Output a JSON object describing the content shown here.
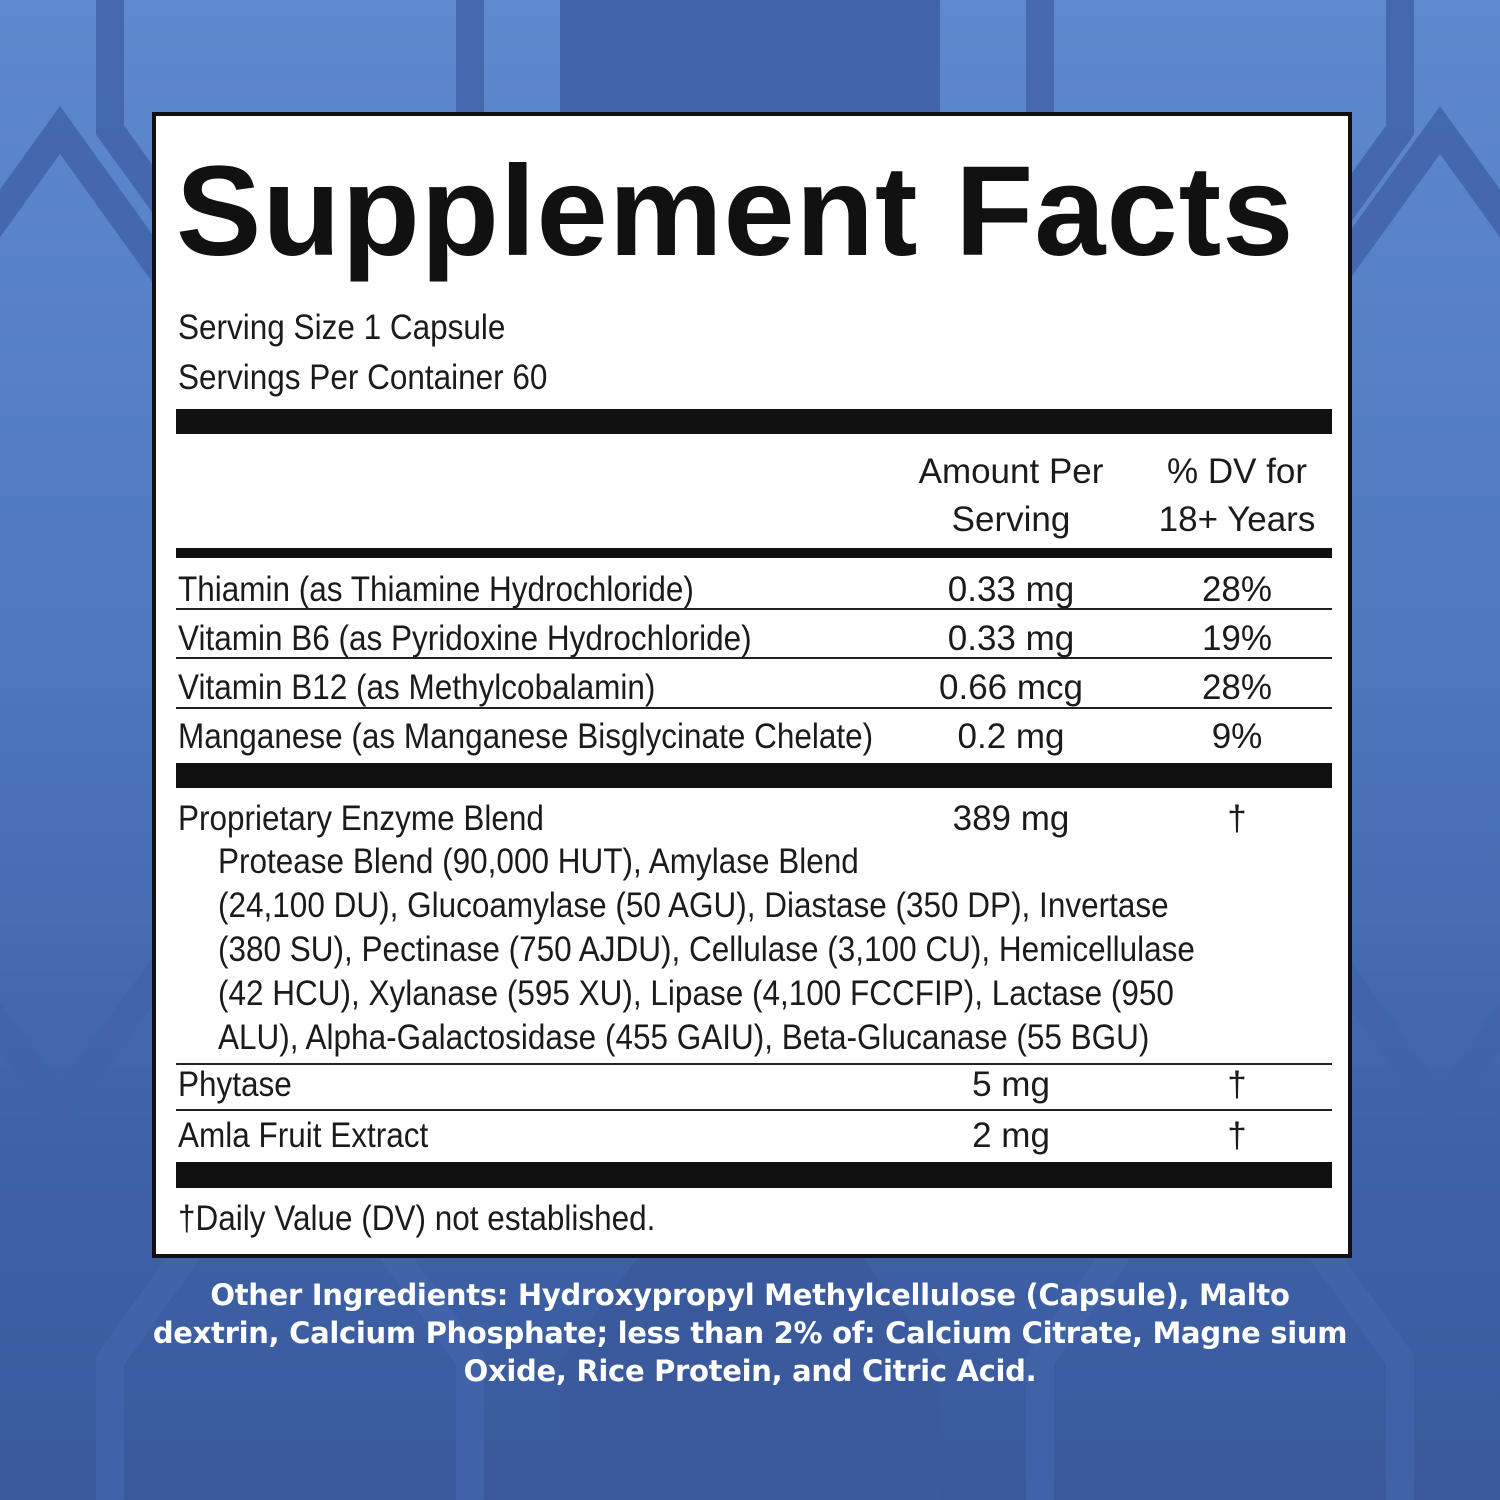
{
  "title": "Supplement Facts",
  "serving_size": "Serving Size 1 Capsule",
  "servings_per_container": "Servings Per Container 60",
  "headers": {
    "amount_1": "Amount Per",
    "amount_2": "Serving",
    "dv_1": "% DV for",
    "dv_2": "18+ Years"
  },
  "vitamins": [
    {
      "name": "Thiamin (as Thiamine Hydrochloride)",
      "amount": "0.33 mg",
      "dv": "28%"
    },
    {
      "name": "Vitamin B6 (as Pyridoxine Hydrochloride)",
      "amount": "0.33 mg",
      "dv": "19%"
    },
    {
      "name": "Vitamin B12 (as Methylcobalamin)",
      "amount": "0.66 mcg",
      "dv": "28%"
    },
    {
      "name": "Manganese (as Manganese Bisglycinate Chelate)",
      "amount": "0.2 mg",
      "dv": "9%"
    }
  ],
  "blend": {
    "name": "Proprietary Enzyme Blend",
    "amount": "389 mg",
    "dv": "†",
    "lines": [
      "Protease Blend (90,000 HUT), Amylase Blend",
      "(24,100 DU), Glucoamylase (50 AGU), Diastase (350 DP), Invertase",
      "(380 SU), Pectinase (750 AJDU), Cellulase (3,100 CU), Hemicellulase",
      "(42 HCU), Xylanase (595 XU), Lipase (4,100 FCCFIP), Lactase (950",
      "ALU), Alpha-Galactosidase (455 GAIU), Beta-Glucanase (55 BGU)"
    ]
  },
  "others": [
    {
      "name": "Phytase",
      "amount": "5 mg",
      "dv": "†"
    },
    {
      "name": "Amla Fruit Extract",
      "amount": "2 mg",
      "dv": "†"
    }
  ],
  "footnote": "†Daily Value (DV) not established.",
  "other_ingredients": "Other Ingredients: Hydroxypropyl Methylcellulose (Capsule), Malto dextrin, Calcium Phosphate; less than 2% of: Calcium Citrate, Magne sium Oxide, Rice Protein, and Citric Acid.",
  "colors": {
    "background_top": "#5f89cd",
    "background_bottom": "#39599c",
    "hexagon": "#4063a8"
  }
}
